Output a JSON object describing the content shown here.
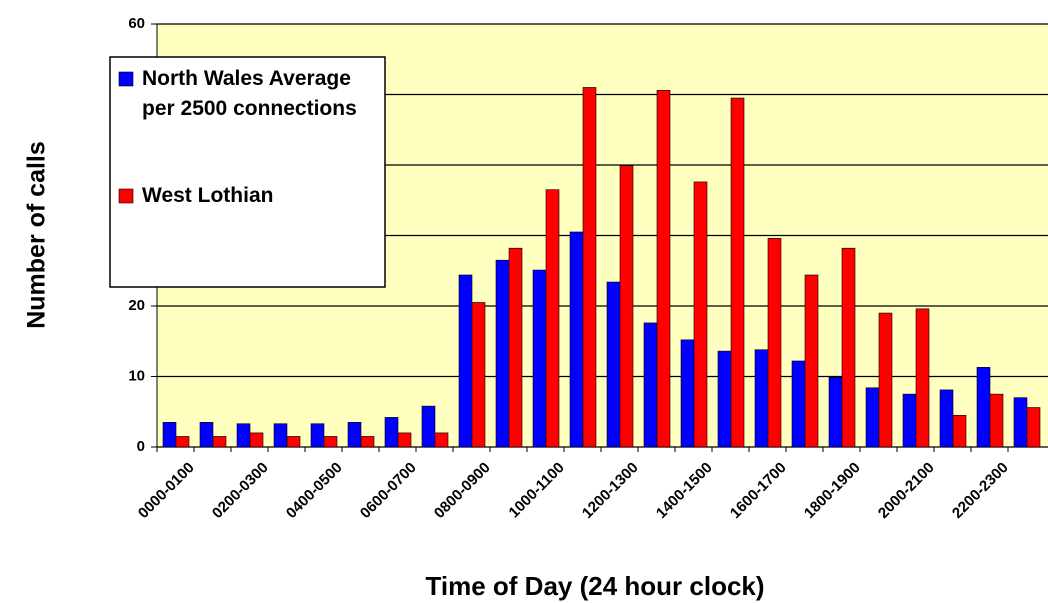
{
  "chart_data": {
    "type": "bar",
    "xlabel": "Time of Day (24 hour clock)",
    "ylabel": "Number of calls",
    "categories": [
      "0000-0100",
      null,
      "0200-0300",
      null,
      "0400-0500",
      null,
      "0600-0700",
      null,
      "0800-0900",
      null,
      "1000-1100",
      null,
      "1200-1300",
      null,
      "1400-1500",
      null,
      "1600-1700",
      null,
      "1800-1900",
      null,
      "2000-2100",
      null,
      "2200-2300",
      null
    ],
    "series": [
      {
        "name": "North Wales Average per 2500 connections",
        "color": "#0000ff",
        "values": [
          3.5,
          3.5,
          3.3,
          3.3,
          3.3,
          3.5,
          4.2,
          5.8,
          24.4,
          26.5,
          25.1,
          30.5,
          23.4,
          17.6,
          15.2,
          13.6,
          13.8,
          12.2,
          9.9,
          8.4,
          7.5,
          8.1,
          11.3,
          7
        ]
      },
      {
        "name": "West Lothian",
        "color": "#ff0000",
        "values": [
          1.5,
          1.5,
          2,
          1.5,
          1.5,
          1.5,
          2,
          2,
          20.5,
          28.2,
          36.5,
          51,
          39.9,
          50.6,
          37.6,
          49.5,
          29.6,
          24.4,
          28.2,
          19,
          19.6,
          4.5,
          7.5,
          5.6
        ]
      }
    ],
    "ylim": [
      0,
      60
    ],
    "yticks": [
      0,
      10,
      20,
      30,
      40,
      50,
      60
    ],
    "grid": true,
    "plot_background": "#ffffc0",
    "legend": "upper left"
  }
}
